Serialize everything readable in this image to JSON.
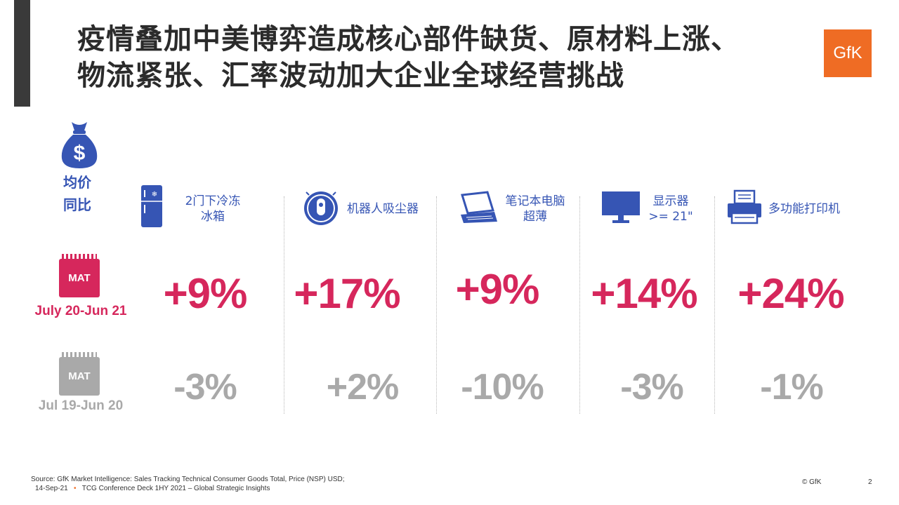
{
  "title": {
    "line1": "疫情叠加中美博弈造成核心部件缺货、原材料上涨、",
    "line2": "物流紧张、汇率波动加大企业全球经营挑战"
  },
  "logo": {
    "text": "GfK",
    "color": "#ef6c24"
  },
  "metric": {
    "icon": "money-bag-dollar-icon",
    "label_line1": "均价",
    "label_line2": "同比"
  },
  "rows": {
    "current": {
      "badge": "MAT",
      "period": "July 20-Jun 21",
      "color": "#d6275c"
    },
    "previous": {
      "badge": "MAT",
      "period": "Jul 19-Jun 20",
      "color": "#a9a9a9"
    }
  },
  "categories": [
    {
      "icon": "refrigerator-icon",
      "label_line1": "2门下冷冻",
      "label_line2": "冰箱",
      "current": "+9%",
      "previous": "-3%"
    },
    {
      "icon": "robot-vacuum-icon",
      "label_line1": "机器人吸尘器",
      "label_line2": "",
      "current": "+17%",
      "previous": "+2%"
    },
    {
      "icon": "laptop-icon",
      "label_line1": "笔记本电脑",
      "label_line2": "超薄",
      "current": "+9%",
      "previous": "-10%"
    },
    {
      "icon": "monitor-icon",
      "label_line1": "显示器",
      "label_line2": ">= 21\"",
      "current": "+14%",
      "previous": "-3%"
    },
    {
      "icon": "printer-icon",
      "label_line1": "多功能打印机",
      "label_line2": "",
      "current": "+24%",
      "previous": "-1%"
    }
  ],
  "footer": {
    "source": "Source: GfK Market Intelligence: Sales Tracking Technical Consumer Goods Total, Price (NSP) USD;",
    "date": "14-Sep-21",
    "dot": "•",
    "deck": "TCG Conference Deck 1HY 2021 – Global Strategic Insights",
    "copyright": "© GfK",
    "page": "2"
  },
  "colors": {
    "accent_red": "#d6275c",
    "muted_gray": "#a9a9a9",
    "label_blue": "#3655b4",
    "title_bar": "#3a3a3a"
  }
}
